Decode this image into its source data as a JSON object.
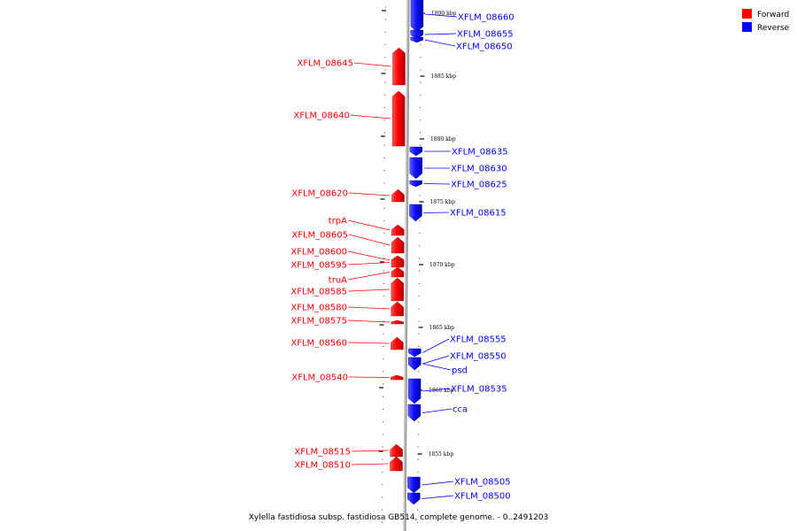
{
  "legend": {
    "forward": {
      "label": "Forward",
      "color": "#ff0000"
    },
    "reverse": {
      "label": "Reverse",
      "color": "#0000ff"
    }
  },
  "footer": "Xylella fastidiosa subsp. fastidiosa GB514, complete genome. - 0..2491203",
  "scale_labels": [
    "1890 kbp",
    "1885 kbp",
    "1880 kbp",
    "1875 kbp",
    "1870 kbp",
    "1865 kbp",
    "1860 kbp",
    "1855 kbp"
  ],
  "genes": [
    {
      "name": "XFLM_08660",
      "strand": "reverse"
    },
    {
      "name": "XFLM_08655",
      "strand": "reverse"
    },
    {
      "name": "XFLM_08650",
      "strand": "reverse"
    },
    {
      "name": "XFLM_08645",
      "strand": "forward"
    },
    {
      "name": "XFLM_08640",
      "strand": "forward"
    },
    {
      "name": "XFLM_08635",
      "strand": "reverse"
    },
    {
      "name": "XFLM_08630",
      "strand": "reverse"
    },
    {
      "name": "XFLM_08625",
      "strand": "reverse"
    },
    {
      "name": "XFLM_08620",
      "strand": "forward"
    },
    {
      "name": "XFLM_08615",
      "strand": "reverse"
    },
    {
      "name": "trpA",
      "strand": "forward"
    },
    {
      "name": "XFLM_08605",
      "strand": "forward"
    },
    {
      "name": "XFLM_08600",
      "strand": "forward"
    },
    {
      "name": "XFLM_08595",
      "strand": "forward"
    },
    {
      "name": "truA",
      "strand": "forward"
    },
    {
      "name": "XFLM_08585",
      "strand": "forward"
    },
    {
      "name": "XFLM_08580",
      "strand": "forward"
    },
    {
      "name": "XFLM_08575",
      "strand": "forward"
    },
    {
      "name": "XFLM_08560",
      "strand": "forward"
    },
    {
      "name": "XFLM_08555",
      "strand": "reverse"
    },
    {
      "name": "XFLM_08550",
      "strand": "reverse"
    },
    {
      "name": "psd",
      "strand": "reverse"
    },
    {
      "name": "XFLM_08540",
      "strand": "forward"
    },
    {
      "name": "XFLM_08535",
      "strand": "reverse"
    },
    {
      "name": "cca",
      "strand": "reverse"
    },
    {
      "name": "XFLM_08515",
      "strand": "forward"
    },
    {
      "name": "XFLM_08510",
      "strand": "forward"
    },
    {
      "name": "XFLM_08505",
      "strand": "reverse"
    },
    {
      "name": "XFLM_08500",
      "strand": "reverse"
    }
  ]
}
